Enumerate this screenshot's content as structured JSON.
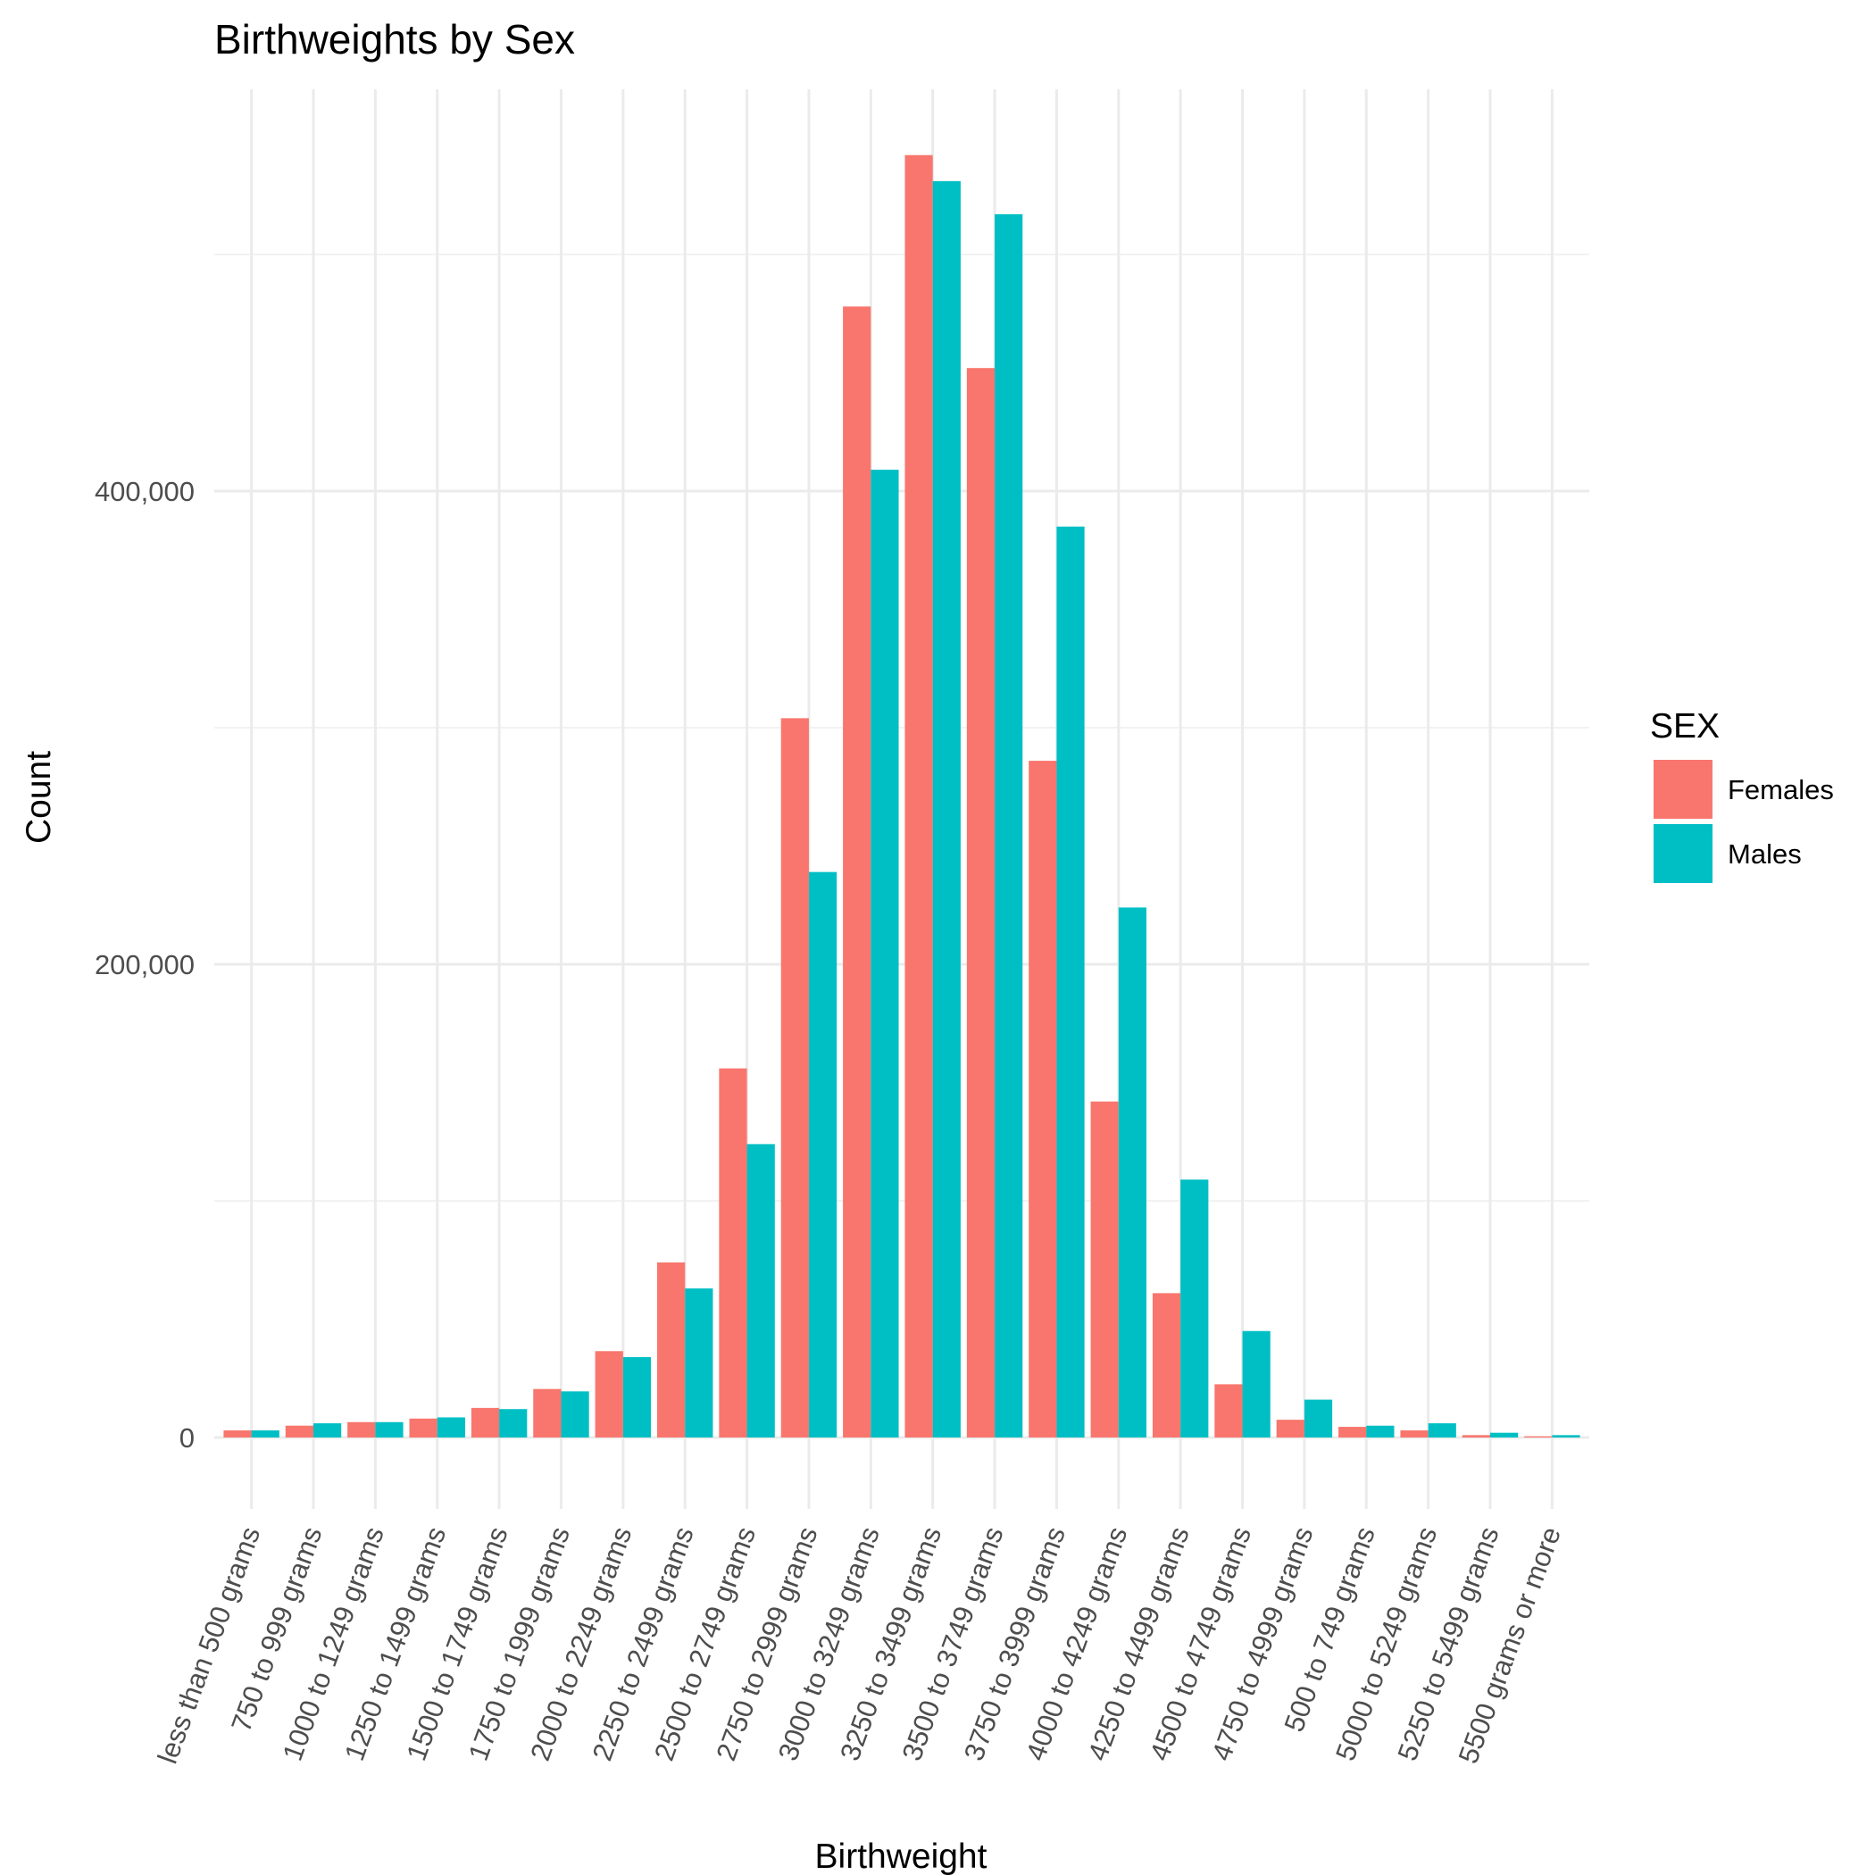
{
  "chart_data": {
    "type": "bar",
    "title": "Birthweights by Sex",
    "xlabel": "Birthweight",
    "ylabel": "Count",
    "ylim": [
      -30000,
      580000
    ],
    "yticks": [
      0,
      200000,
      400000
    ],
    "ytick_labels": [
      "0",
      "200,000",
      "400,000"
    ],
    "grid": true,
    "legend": {
      "title": "SEX",
      "position": "right"
    },
    "categories": [
      "less than 500 grams",
      "750 to 999 grams",
      "1000 to 1249 grams",
      "1250 to 1499 grams",
      "1500 to 1749 grams",
      "1750 to 1999 grams",
      "2000 to 2249 grams",
      "2250 to 2499 grams",
      "2500 to 2749 grams",
      "2750 to 2999 grams",
      "3000 to 3249 grams",
      "3250 to 3499 grams",
      "3500 to 3749 grams",
      "3750 to 3999 grams",
      "4000 to 4249 grams",
      "4250 to 4499 grams",
      "4500 to 4749 grams",
      "4750 to 4999 grams",
      "500 to 749 grams",
      "5000 to 5249 grams",
      "5250 to 5499 grams",
      "5500 grams or more"
    ],
    "series": [
      {
        "name": "Females",
        "color": "#F8766D",
        "values": [
          3000,
          5000,
          6500,
          8000,
          12500,
          20500,
          36500,
          74000,
          156000,
          304000,
          478000,
          542000,
          452000,
          286000,
          142000,
          61000,
          22500,
          7500,
          4500,
          3000,
          1000,
          500
        ]
      },
      {
        "name": "Males",
        "color": "#00BFC4",
        "values": [
          3000,
          6000,
          6500,
          8500,
          12000,
          19500,
          34000,
          63000,
          124000,
          239000,
          409000,
          531000,
          517000,
          385000,
          224000,
          109000,
          45000,
          16000,
          5000,
          6000,
          2000,
          1000
        ]
      }
    ]
  }
}
